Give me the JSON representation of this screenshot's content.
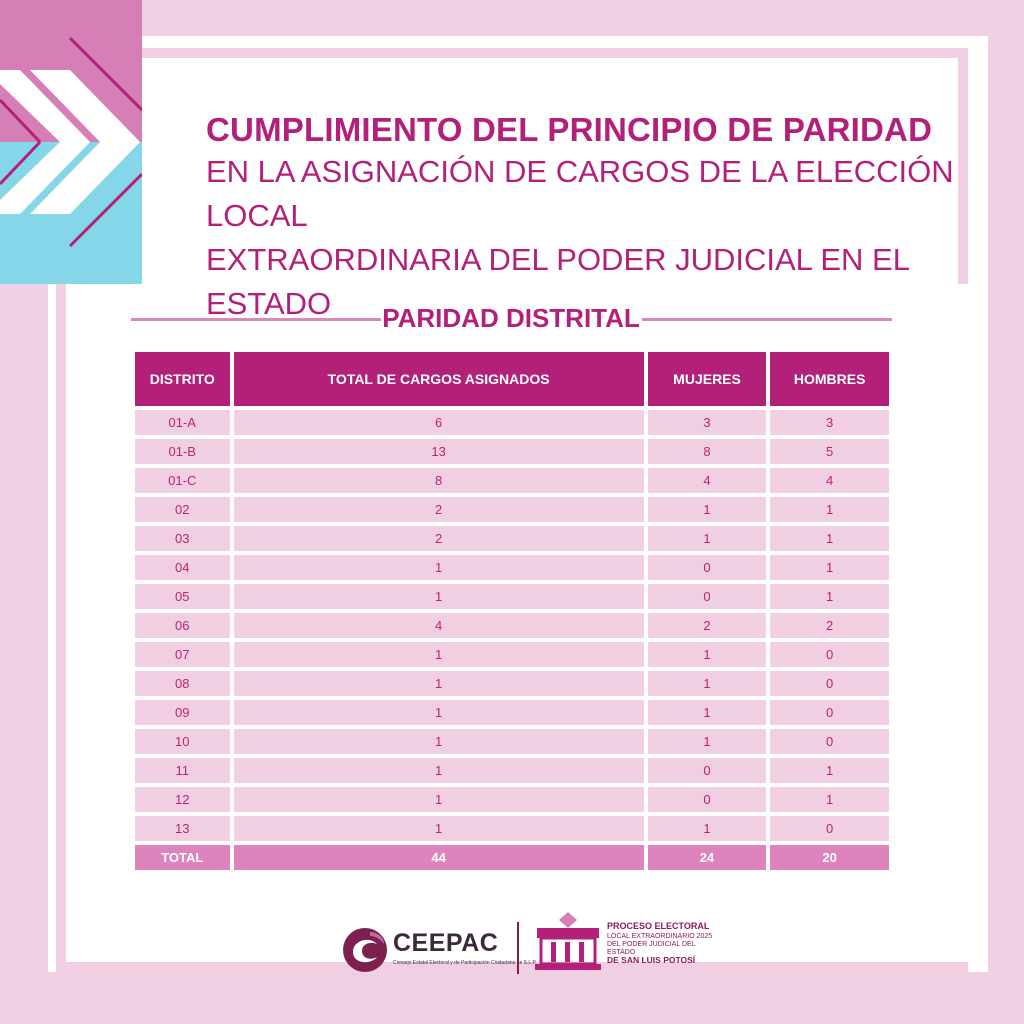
{
  "title": {
    "line1": "CUMPLIMIENTO DEL PRINCIPIO DE PARIDAD",
    "line2": "EN LA ASIGNACIÓN DE CARGOS DE LA ELECCIÓN LOCAL",
    "line3": "EXTRAORDINARIA DEL PODER JUDICIAL EN EL ESTADO"
  },
  "section_title": "PARIDAD DISTRITAL",
  "table": {
    "headers": [
      "DISTRITO",
      "TOTAL DE CARGOS ASIGNADOS",
      "MUJERES",
      "HOMBRES"
    ],
    "rows": [
      [
        "01-A",
        "6",
        "3",
        "3"
      ],
      [
        "01-B",
        "13",
        "8",
        "5"
      ],
      [
        "01-C",
        "8",
        "4",
        "4"
      ],
      [
        "02",
        "2",
        "1",
        "1"
      ],
      [
        "03",
        "2",
        "1",
        "1"
      ],
      [
        "04",
        "1",
        "0",
        "1"
      ],
      [
        "05",
        "1",
        "0",
        "1"
      ],
      [
        "06",
        "4",
        "2",
        "2"
      ],
      [
        "07",
        "1",
        "1",
        "0"
      ],
      [
        "08",
        "1",
        "1",
        "0"
      ],
      [
        "09",
        "1",
        "1",
        "0"
      ],
      [
        "10",
        "1",
        "1",
        "0"
      ],
      [
        "11",
        "1",
        "0",
        "1"
      ],
      [
        "12",
        "1",
        "0",
        "1"
      ],
      [
        "13",
        "1",
        "1",
        "0"
      ]
    ],
    "total": [
      "TOTAL",
      "44",
      "24",
      "20"
    ]
  },
  "footer": {
    "ceepac_name": "CEEPAC",
    "ceepac_subtitle": "Consejo Estatal Electoral y de Participación Ciudadana de S.L.P.",
    "process_title": "PROCESO ELECTORAL",
    "process_line2": "LOCAL EXTRAORDINARIO 2025",
    "process_line3": "DEL PODER JUDICIAL DEL ESTADO",
    "process_city": "DE SAN LUIS POTOSÍ"
  },
  "colors": {
    "primary": "#b32079",
    "pale_pink": "#f0cfe3",
    "row_pink": "#f0cfe3",
    "total_pink": "#dd83bd",
    "accent_blue": "#86d6ea",
    "accent_magenta": "#d67fb6"
  }
}
